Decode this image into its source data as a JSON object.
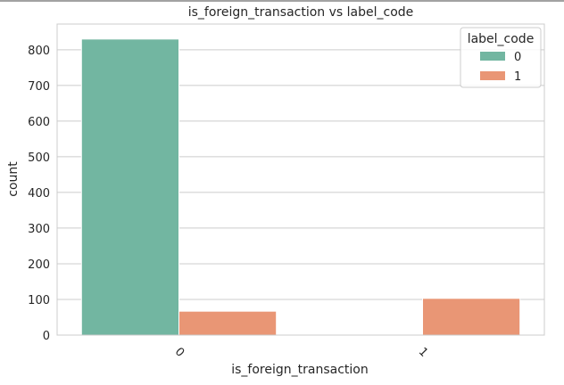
{
  "chart_data": {
    "type": "bar",
    "title": "is_foreign_transaction vs label_code",
    "xlabel": "is_foreign_transaction",
    "ylabel": "count",
    "categories": [
      "0",
      "1"
    ],
    "series": [
      {
        "name": "0",
        "values": [
          830,
          0
        ],
        "color": "#72b6a1"
      },
      {
        "name": "1",
        "values": [
          67,
          103
        ],
        "color": "#e99675"
      }
    ],
    "ylim": [
      0,
      872
    ],
    "yticks": [
      0,
      100,
      200,
      300,
      400,
      500,
      600,
      700,
      800
    ],
    "legend": {
      "title": "label_code",
      "placement": "top-right"
    },
    "grid": true,
    "grid_color": "#cccccc"
  }
}
